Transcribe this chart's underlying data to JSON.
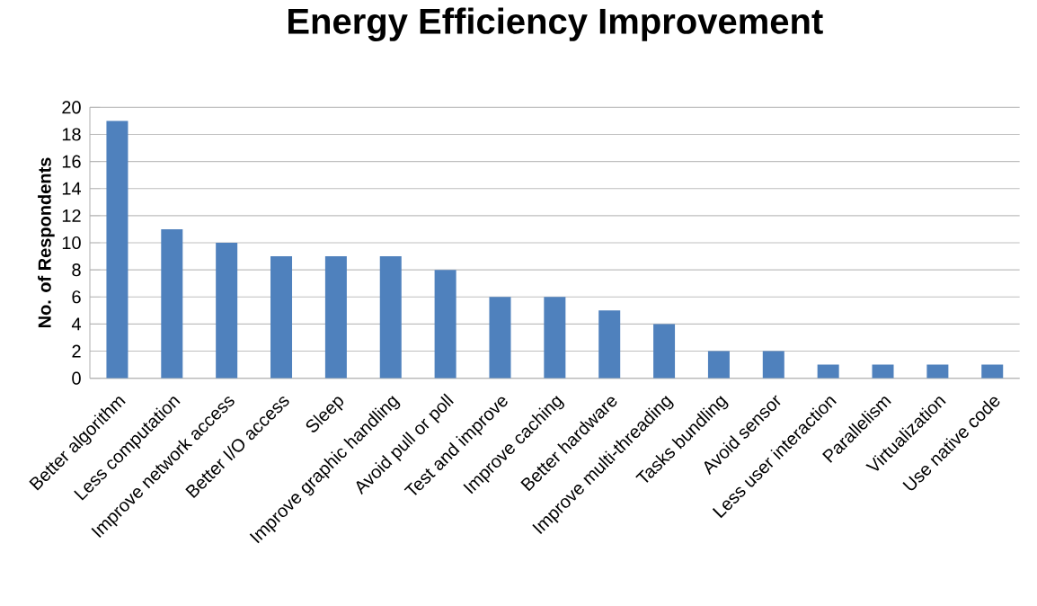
{
  "chart_data": {
    "type": "bar",
    "title": "Energy Efficiency Improvement",
    "ylabel": "No. of Respondents",
    "categories": [
      "Better algorithm",
      "Less computation",
      "Improve network access",
      "Better I/O access",
      "Sleep",
      "Improve graphic handling",
      "Avoid pull or poll",
      "Test and improve",
      "Improve caching",
      "Better hardware",
      "Improve multi-threading",
      "Tasks bundling",
      "Avoid sensor",
      "Less user interaction",
      "Parallelism",
      "Virtualization",
      "Use native code"
    ],
    "values": [
      19,
      11,
      10,
      9,
      9,
      9,
      8,
      6,
      6,
      5,
      4,
      2,
      2,
      1,
      1,
      1,
      1
    ],
    "color": "#4f81bd",
    "ylim": [
      0,
      20
    ],
    "yticks": [
      0,
      2,
      4,
      6,
      8,
      10,
      12,
      14,
      16,
      18,
      20
    ],
    "grid": "y"
  }
}
